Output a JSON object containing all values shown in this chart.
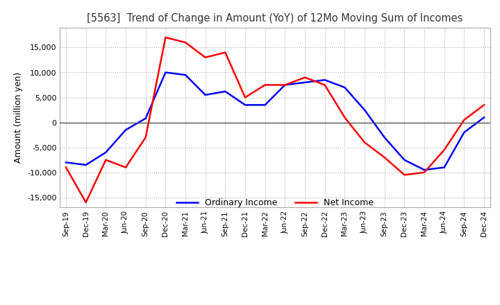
{
  "title": "[5563]  Trend of Change in Amount (YoY) of 12Mo Moving Sum of Incomes",
  "ylabel": "Amount (million yen)",
  "ylim": [
    -17000,
    19000
  ],
  "yticks": [
    -15000,
    -10000,
    -5000,
    0,
    5000,
    10000,
    15000
  ],
  "background_color": "#ffffff",
  "grid_color": "#aaaaaa",
  "x_labels": [
    "Sep-19",
    "Dec-19",
    "Mar-20",
    "Jun-20",
    "Sep-20",
    "Dec-20",
    "Mar-21",
    "Jun-21",
    "Sep-21",
    "Dec-21",
    "Mar-22",
    "Jun-22",
    "Sep-22",
    "Dec-22",
    "Mar-23",
    "Jun-23",
    "Sep-23",
    "Dec-23",
    "Mar-24",
    "Jun-24",
    "Sep-24",
    "Dec-24"
  ],
  "ordinary_income": [
    -8000,
    -8500,
    -6000,
    -1500,
    800,
    10000,
    9500,
    5500,
    6200,
    3500,
    3500,
    7500,
    8000,
    8500,
    7000,
    2500,
    -3000,
    -7500,
    -9500,
    -9000,
    -2000,
    1000
  ],
  "net_income": [
    -9000,
    -16000,
    -7500,
    -9000,
    -3000,
    17000,
    16000,
    13000,
    14000,
    5000,
    7500,
    7500,
    9000,
    7500,
    1000,
    -4000,
    -7000,
    -10500,
    -10000,
    -5500,
    500,
    3500
  ],
  "ordinary_color": "#0000ff",
  "net_color": "#ff0000",
  "line_width": 1.8
}
